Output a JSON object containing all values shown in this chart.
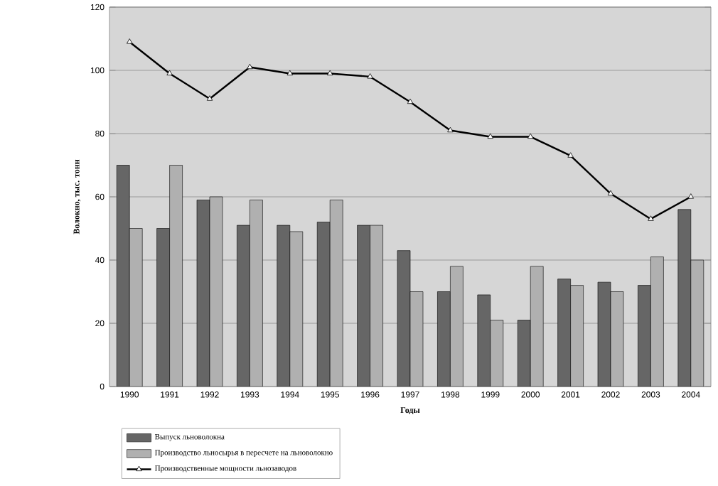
{
  "chart_data": {
    "type": "bar",
    "xlabel": "Годы",
    "ylabel": "Волокно, тыс. тонн",
    "categories": [
      "1990",
      "1991",
      "1992",
      "1993",
      "1994",
      "1995",
      "1996",
      "1997",
      "1998",
      "1999",
      "2000",
      "2001",
      "2002",
      "2003",
      "2004"
    ],
    "series": [
      {
        "name": "Выпуск льноволокна",
        "color": "#666666",
        "values": [
          70,
          50,
          59,
          51,
          51,
          52,
          51,
          43,
          30,
          29,
          21,
          34,
          33,
          32,
          56
        ]
      },
      {
        "name": "Производство льносырья в пересчете на льноволокно",
        "color": "#b0b0b0",
        "values": [
          50,
          70,
          60,
          59,
          49,
          59,
          51,
          30,
          38,
          21,
          38,
          32,
          30,
          41,
          40
        ]
      },
      {
        "name": "Производственные мощности льнозаводов",
        "type": "line",
        "color": "#000000",
        "marker": "triangle",
        "values": [
          109,
          99,
          91,
          101,
          99,
          99,
          98,
          90,
          81,
          79,
          79,
          73,
          61,
          53,
          60
        ]
      }
    ],
    "ylim": [
      0,
      120
    ],
    "yticks": [
      0,
      20,
      40,
      60,
      80,
      100,
      120
    ],
    "grid": "y",
    "legend": "bottom left"
  }
}
